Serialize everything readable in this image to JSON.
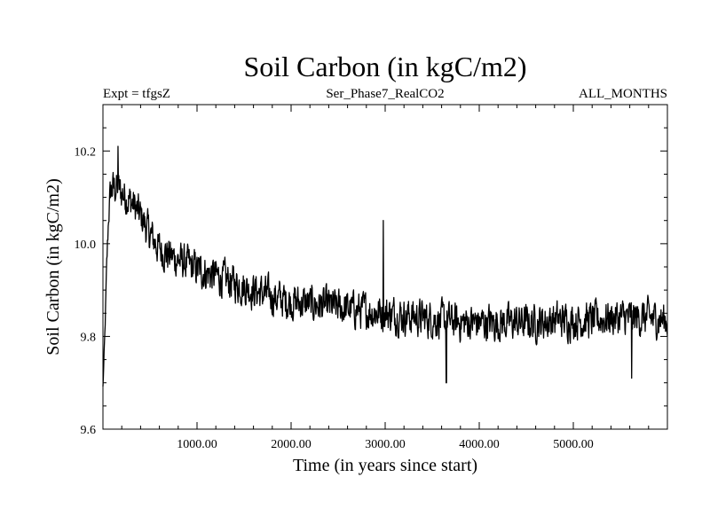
{
  "chart_data": {
    "type": "line",
    "title": "Soil Carbon (in kgC/m2)",
    "subtitle_left": "Expt = tfgsZ",
    "subtitle_center": "Ser_Phase7_RealCO2",
    "subtitle_right": "ALL_MONTHS",
    "xlabel": "Time (in years since start)",
    "ylabel": "Soil Carbon (in kgC/m2)",
    "xlim": [
      0,
      6000
    ],
    "ylim": [
      9.6,
      10.3
    ],
    "x_ticks": [
      {
        "value": 1000,
        "label": "1000.00"
      },
      {
        "value": 2000,
        "label": "2000.00"
      },
      {
        "value": 3000,
        "label": "3000.00"
      },
      {
        "value": 4000,
        "label": "4000.00"
      },
      {
        "value": 5000,
        "label": "5000.00"
      }
    ],
    "y_ticks": [
      {
        "value": 9.6,
        "label": "9.6"
      },
      {
        "value": 9.8,
        "label": "9.8"
      },
      {
        "value": 10.0,
        "label": "10.0"
      },
      {
        "value": 10.2,
        "label": "10.2"
      }
    ],
    "series": [
      {
        "name": "Soil Carbon",
        "color": "#000000",
        "x": [
          0,
          20,
          40,
          60,
          80,
          100,
          150,
          200,
          300,
          400,
          500,
          600,
          700,
          800,
          900,
          1000,
          1200,
          1400,
          1600,
          1800,
          2000,
          2200,
          2400,
          2600,
          2800,
          3000,
          3200,
          3400,
          3600,
          3800,
          4000,
          4200,
          4400,
          4600,
          4800,
          5000,
          5200,
          5400,
          5600,
          5800,
          6000
        ],
        "trend": [
          9.69,
          9.8,
          9.95,
          10.06,
          10.11,
          10.12,
          10.12,
          10.11,
          10.09,
          10.06,
          10.02,
          9.99,
          9.975,
          9.965,
          9.955,
          9.945,
          9.93,
          9.915,
          9.9,
          9.885,
          9.875,
          9.87,
          9.865,
          9.86,
          9.855,
          9.85,
          9.845,
          9.84,
          9.835,
          9.83,
          9.83,
          9.83,
          9.83,
          9.83,
          9.835,
          9.835,
          9.835,
          9.84,
          9.84,
          9.84,
          9.835
        ],
        "noise_amplitude": [
          0.01,
          0.02,
          0.03,
          0.04,
          0.05,
          0.05,
          0.05,
          0.05,
          0.05,
          0.05,
          0.05,
          0.05,
          0.05,
          0.05,
          0.05,
          0.05,
          0.05,
          0.05,
          0.05,
          0.05,
          0.05,
          0.05,
          0.05,
          0.05,
          0.05,
          0.05,
          0.05,
          0.05,
          0.05,
          0.05,
          0.05,
          0.05,
          0.05,
          0.05,
          0.05,
          0.05,
          0.05,
          0.05,
          0.05,
          0.05,
          0.05
        ],
        "spikes": [
          {
            "x": 2980,
            "y": 10.05
          },
          {
            "x": 3650,
            "y": 9.7
          },
          {
            "x": 160,
            "y": 10.21
          },
          {
            "x": 5620,
            "y": 9.71
          }
        ]
      }
    ]
  }
}
